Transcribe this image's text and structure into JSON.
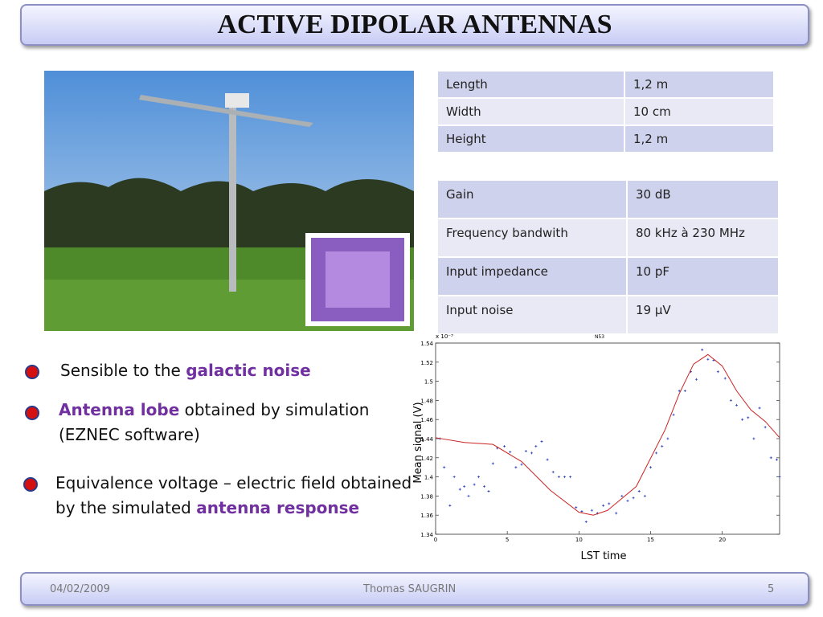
{
  "header": {
    "title": "ACTIVE DIPOLAR ANTENNAS"
  },
  "dimensions_table": {
    "rows": [
      [
        "Length",
        "1,2 m"
      ],
      [
        "Width",
        "10 cm"
      ],
      [
        "Height",
        "1,2 m"
      ]
    ]
  },
  "specs_table": {
    "rows": [
      [
        "Gain",
        "30 dB"
      ],
      [
        "Frequency bandwith",
        "80 kHz à 230 MHz"
      ],
      [
        "Input impedance",
        "10 pF"
      ],
      [
        "Input noise",
        "19 µV"
      ]
    ]
  },
  "bullets": [
    [
      "Sensible to the ",
      "galactic noise"
    ],
    [
      "Antenna lobe",
      " obtained by simulation (EZNEC software)"
    ],
    [
      "Equivalence voltage – electric field obtained by the simulated ",
      "antenna response"
    ]
  ],
  "chart_data": {
    "type": "scatter",
    "title": "N53",
    "y_multiplier": "x 10⁻³",
    "x_label": "LST time",
    "y_label": "Mean signal (V)",
    "xlim": [
      0,
      24
    ],
    "xticks": [
      0,
      5,
      10,
      15,
      20
    ],
    "ylim": [
      1.34,
      1.54
    ],
    "yticks": [
      1.34,
      1.36,
      1.38,
      1.4,
      1.42,
      1.44,
      1.46,
      1.48,
      1.5,
      1.52,
      1.54
    ],
    "series": [
      {
        "mode": "markers",
        "color": "#2a3fbf",
        "x": [
          0.3,
          0.6,
          1,
          1.3,
          1.7,
          2,
          2.3,
          2.7,
          3,
          3.4,
          3.7,
          4,
          4.3,
          4.8,
          5.2,
          5.6,
          6,
          6.3,
          6.7,
          7,
          7.4,
          7.8,
          8.2,
          8.6,
          9,
          9.4,
          9.8,
          10.2,
          10.5,
          10.9,
          11.3,
          11.7,
          12.1,
          12.6,
          13,
          13.4,
          13.8,
          14.2,
          14.6,
          15,
          15.4,
          15.8,
          16.2,
          16.6,
          17,
          17.4,
          17.8,
          18.2,
          18.6,
          19,
          19.4,
          19.7,
          20.2,
          20.6,
          21,
          21.4,
          21.8,
          22.2,
          22.6,
          23,
          23.4,
          23.8,
          24
        ],
        "values": [
          1.44,
          1.41,
          1.37,
          1.4,
          1.387,
          1.39,
          1.38,
          1.392,
          1.4,
          1.39,
          1.385,
          1.414,
          1.43,
          1.432,
          1.426,
          1.41,
          1.413,
          1.427,
          1.425,
          1.432,
          1.437,
          1.418,
          1.405,
          1.4,
          1.4,
          1.4,
          1.368,
          1.364,
          1.353,
          1.365,
          1.362,
          1.37,
          1.372,
          1.362,
          1.38,
          1.375,
          1.378,
          1.385,
          1.38,
          1.41,
          1.425,
          1.432,
          1.44,
          1.465,
          1.49,
          1.49,
          1.51,
          1.502,
          1.533,
          1.523,
          1.522,
          1.51,
          1.503,
          1.48,
          1.475,
          1.46,
          1.462,
          1.44,
          1.472,
          1.452,
          1.42,
          1.418,
          1.4
        ]
      },
      {
        "mode": "line",
        "color": "#cc2222",
        "x": [
          0,
          2,
          4,
          6,
          8,
          10,
          11,
          12,
          14,
          16,
          17,
          18,
          19,
          20,
          21,
          22,
          23,
          24
        ],
        "values": [
          1.441,
          1.436,
          1.434,
          1.416,
          1.386,
          1.363,
          1.36,
          1.365,
          1.39,
          1.449,
          1.487,
          1.518,
          1.528,
          1.516,
          1.49,
          1.47,
          1.458,
          1.441
        ]
      }
    ]
  },
  "footer": {
    "date": "04/02/2009",
    "author": "Thomas SAUGRIN",
    "page": "5"
  }
}
